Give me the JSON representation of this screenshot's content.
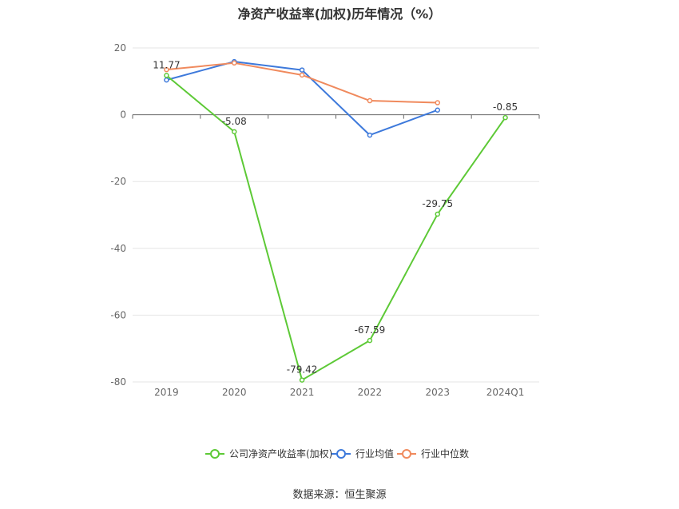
{
  "chart_data": {
    "type": "line",
    "title": "净资产收益率(加权)历年情况（%）",
    "categories": [
      "2019",
      "2020",
      "2021",
      "2022",
      "2023",
      "2024Q1"
    ],
    "ylim": [
      -80,
      20
    ],
    "yticks": [
      20,
      0,
      -20,
      -40,
      -60,
      -80
    ],
    "grid": true,
    "legend_position": "bottom",
    "series": [
      {
        "name": "公司净资产收益率(加权)",
        "color": "#5dc936",
        "values": [
          11.77,
          -5.08,
          -79.42,
          -67.59,
          -29.75,
          -0.85
        ],
        "labels": [
          "11.77",
          "-5.08",
          "-79.42",
          "-67.59",
          "-29.75",
          "-0.85"
        ]
      },
      {
        "name": "行业均值",
        "color": "#3d79db",
        "values": [
          10.4,
          15.9,
          13.4,
          -6.1,
          1.4,
          null
        ]
      },
      {
        "name": "行业中位数",
        "color": "#f08a5d",
        "values": [
          13.5,
          15.5,
          11.9,
          4.2,
          3.6,
          null
        ]
      }
    ]
  },
  "source": "数据来源：恒生聚源"
}
